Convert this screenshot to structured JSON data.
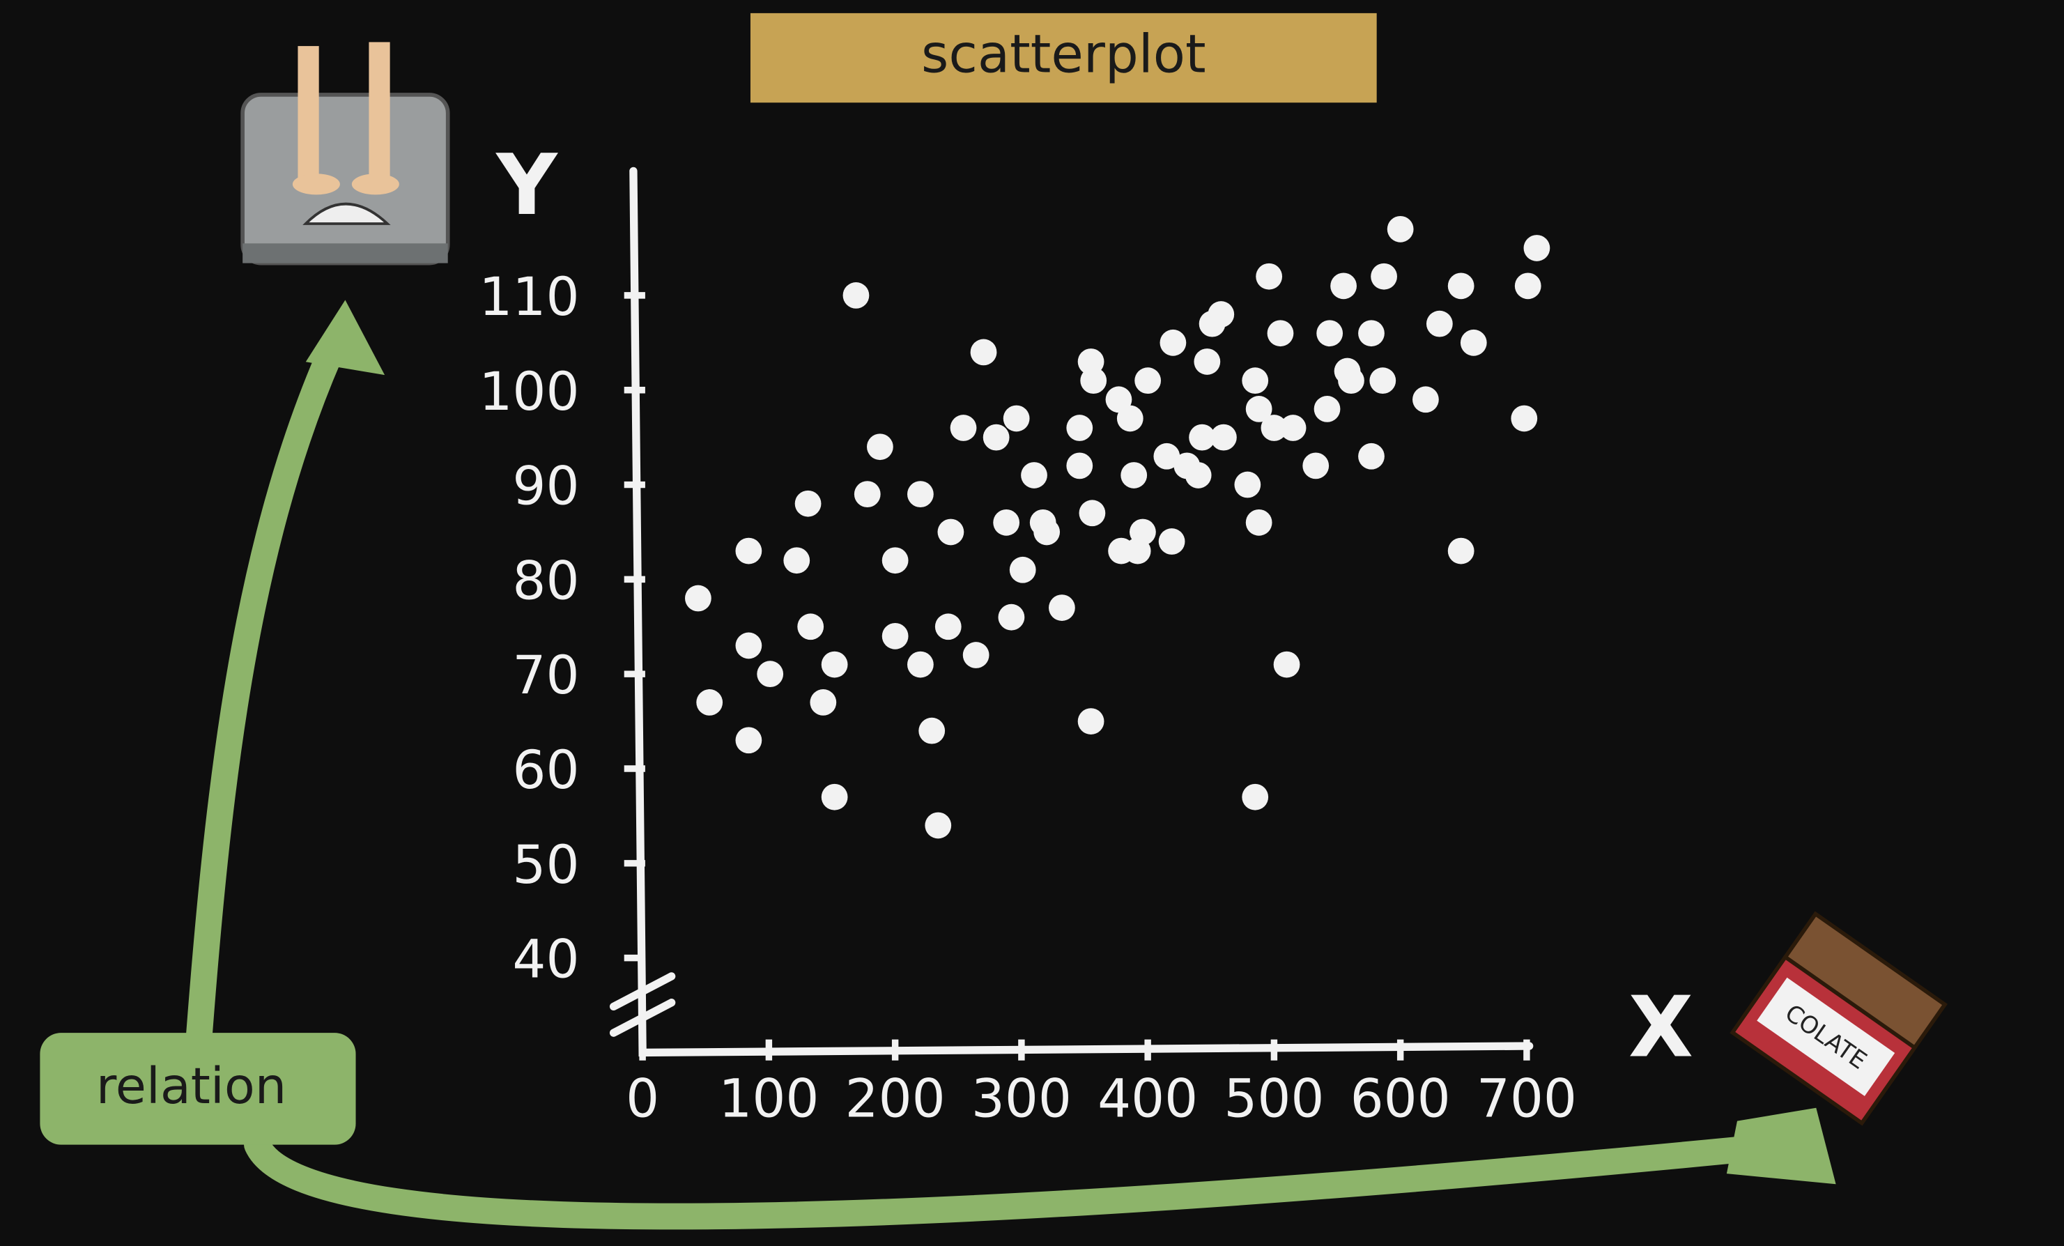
{
  "chart_data": {
    "type": "scatter",
    "title": "scatterplot",
    "x_label": "X",
    "y_label": "Y",
    "annotation": "relation",
    "chocolate_label": "COLATE",
    "color": "#f2f2f2",
    "x": [
      44,
      53,
      84,
      84,
      84,
      101,
      122,
      131,
      133,
      143,
      152,
      152,
      169,
      178,
      188,
      200,
      200,
      220,
      220,
      229,
      234,
      242,
      244,
      254,
      264,
      270,
      280,
      288,
      292,
      296,
      301,
      310,
      317,
      320,
      332,
      346,
      346,
      355,
      357,
      356,
      355,
      377,
      379,
      386,
      389,
      392,
      396,
      400,
      415,
      419,
      420,
      431,
      440,
      443,
      447,
      451,
      458,
      460,
      479,
      485,
      488,
      488,
      485,
      496,
      500,
      505,
      510,
      515,
      533,
      542,
      544,
      555,
      558,
      561,
      577,
      577,
      586,
      587,
      600,
      620,
      631,
      648,
      648,
      658,
      698,
      701,
      708
    ],
    "values": [
      78,
      67,
      83,
      73,
      63,
      70,
      82,
      88,
      75,
      67,
      71,
      57,
      110,
      89,
      94,
      82,
      74,
      89,
      71,
      64,
      54,
      75,
      85,
      96,
      72,
      104,
      95,
      86,
      76,
      97,
      81,
      91,
      86,
      85,
      77,
      96,
      92,
      103,
      101,
      87,
      65,
      99,
      83,
      97,
      91,
      83,
      85,
      101,
      93,
      84,
      105,
      92,
      91,
      95,
      103,
      107,
      108,
      95,
      90,
      101,
      86,
      98,
      57,
      112,
      96,
      106,
      71,
      96,
      92,
      98,
      106,
      111,
      102,
      101,
      106,
      93,
      101,
      112,
      117,
      99,
      107,
      111,
      83,
      105,
      97,
      111,
      115
    ],
    "xlim": [
      0,
      700
    ],
    "ylim": [
      30,
      123
    ],
    "xticks": [
      0,
      100,
      200,
      300,
      400,
      500,
      600,
      700
    ],
    "yticks": [
      40,
      50,
      60,
      70,
      80,
      90,
      100,
      110
    ]
  }
}
